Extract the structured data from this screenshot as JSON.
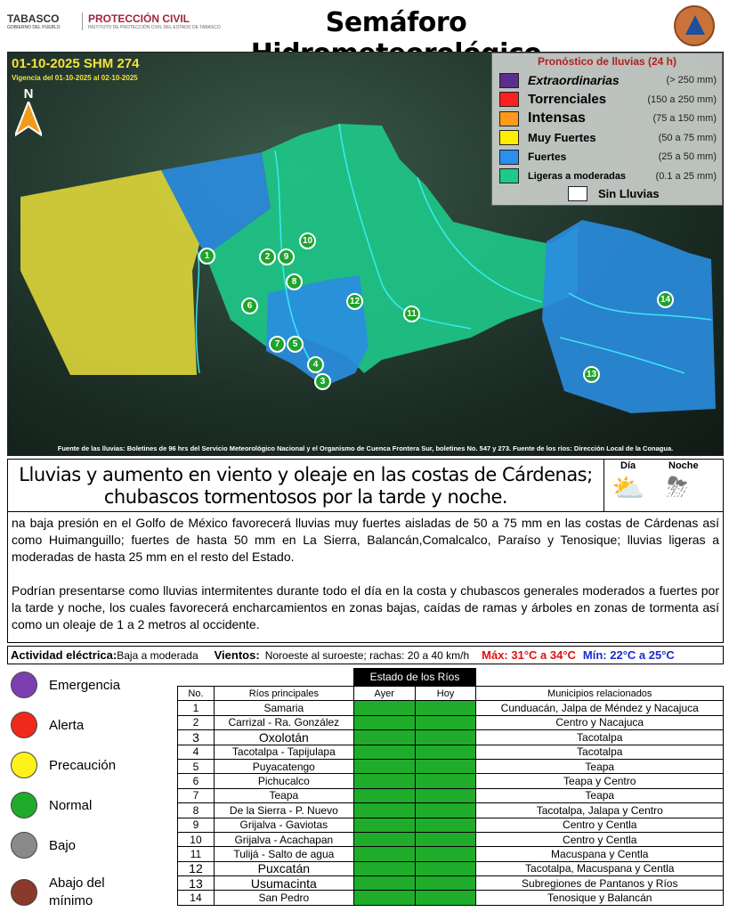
{
  "header": {
    "title": "Semáforo Hidrometeorológico",
    "logo_left": "TABASCO",
    "logo_left_sub": "GOBIERNO DEL PUEBLO",
    "logo_pc": "PROTECCIÓN CIVIL",
    "logo_pc_sub": "INSTITUTO DE PROTECCIÓN CIVIL DEL ESTADO DE TABASCO",
    "seal_text": "PROTECCIÓN CIVIL TABASCO"
  },
  "map": {
    "date_title": "01-10-2025 SHM 274",
    "validity": "Vigencia del 01-10-2025 al 02-10-2025",
    "north": "N",
    "source": "Fuente de las lluvias: Boletines de 96 hrs del Servicio Meteorológico Nacional y el Organismo de Cuenca Frontera Sur, boletines No. 547 y 273. Fuente de los ríos: Dirección Local de la Conagua.",
    "markers": [
      "1",
      "2",
      "3",
      "4",
      "5",
      "6",
      "7",
      "8",
      "9",
      "10",
      "11",
      "12",
      "13",
      "14"
    ]
  },
  "legend": {
    "title": "Pronóstico de lluvias (24 h)",
    "items": [
      {
        "name": "Extraordinarias",
        "range": "(> 250 mm)",
        "color": "#5b2d8c"
      },
      {
        "name": "Torrenciales",
        "range": "(150 a 250 mm)",
        "color": "#ff1f1f"
      },
      {
        "name": "Intensas",
        "range": "(75 a 150 mm)",
        "color": "#ff9a1a"
      },
      {
        "name": "Muy Fuertes",
        "range": "(50 a 75 mm)",
        "color": "#ffee00"
      },
      {
        "name": "Fuertes",
        "range": "(25 a 50 mm)",
        "color": "#2b8ef0"
      },
      {
        "name": "Ligeras a moderadas",
        "range": "(0.1 a 25 mm)",
        "color": "#1ec98a"
      }
    ],
    "none": "Sin Lluvias"
  },
  "forecast": {
    "headline": "Lluvias y aumento en viento y oleaje en las costas de Cárdenas; chubascos tormentosos por la tarde y noche.",
    "day": "Día",
    "night": "Noche",
    "day_icon": "sun-cloud-icon",
    "night_icon": "storm-cloud-icon",
    "p1": "na baja presión en el Golfo de México favorecerá lluvias muy fuertes aisladas de 50 a 75 mm en las costas de Cárdenas así como Huimanguillo; fuertes de hasta 50 mm en La Sierra, Balancán,Comalcalco, Paraíso y Tenosique; lluvias ligeras a moderadas de hasta 25 mm en el resto del Estado.",
    "p2": "Podrían presentarse como lluvias intermitentes durante todo el día en la costa y chubascos generales moderados a fuertes por la tarde y noche, los cuales favorecerá encharcamientos en zonas bajas, caídas de ramas y árboles en zonas de tormenta así como un oleaje de 1 a 2 metros al occidente."
  },
  "activity": {
    "label": "Actividad eléctrica:",
    "value": "Baja a moderada",
    "wind_label": "Vientos:",
    "wind": "Noroeste al suroeste; rachas: 20 a 40 km/h",
    "max": "Máx: 31°C a 34°C",
    "min": "Mín: 22°C a 25°C"
  },
  "river_legend": [
    {
      "label": "Emergencia",
      "color": "#7b3fb0"
    },
    {
      "label": "Alerta",
      "color": "#f02a1a"
    },
    {
      "label": "Precaución",
      "color": "#fff21a"
    },
    {
      "label": "Normal",
      "color": "#1fac2a"
    },
    {
      "label": "Bajo",
      "color": "#8a8a8a"
    },
    {
      "label": "Abajo del mínimo",
      "color": "#8a3a2a"
    }
  ],
  "rivers": {
    "title": "Estado de los Ríos",
    "headers": [
      "No.",
      "Ríos principales",
      "Ayer",
      "Hoy",
      "Municipios relacionados"
    ],
    "status_color": "#1fac2a",
    "rows": [
      [
        "1",
        "Samaria",
        "Cunduacán, Jalpa de Méndez y Nacajuca"
      ],
      [
        "2",
        "Carrizal - Ra. González",
        "Centro y Nacajuca"
      ],
      [
        "3",
        "Oxolotán",
        "Tacotalpa"
      ],
      [
        "4",
        "Tacotalpa - Tapijulapa",
        "Tacotalpa"
      ],
      [
        "5",
        "Puyacatengo",
        "Teapa"
      ],
      [
        "6",
        "Pichucalco",
        "Teapa y Centro"
      ],
      [
        "7",
        "Teapa",
        "Teapa"
      ],
      [
        "8",
        "De la Sierra - P. Nuevo",
        "Tacotalpa, Jalapa y Centro"
      ],
      [
        "9",
        "Grijalva - Gaviotas",
        "Centro y Centla"
      ],
      [
        "10",
        "Grijalva - Acachapan",
        "Centro y Centla"
      ],
      [
        "11",
        "Tulijá - Salto de agua",
        "Macuspana y Centla"
      ],
      [
        "12",
        "Puxcatán",
        "Tacotalpa, Macuspana y Centla"
      ],
      [
        "13",
        "Usumacinta",
        "Subregiones de Pantanos y Ríos"
      ],
      [
        "14",
        "San Pedro",
        "Tenosique y Balancán"
      ]
    ],
    "status_today": [
      "Normal",
      "Normal",
      "Normal",
      "Normal",
      "Normal",
      "Normal",
      "Normal",
      "Normal",
      "Normal",
      "Normal",
      "Normal",
      "Normal",
      "Normal",
      "Normal"
    ]
  }
}
